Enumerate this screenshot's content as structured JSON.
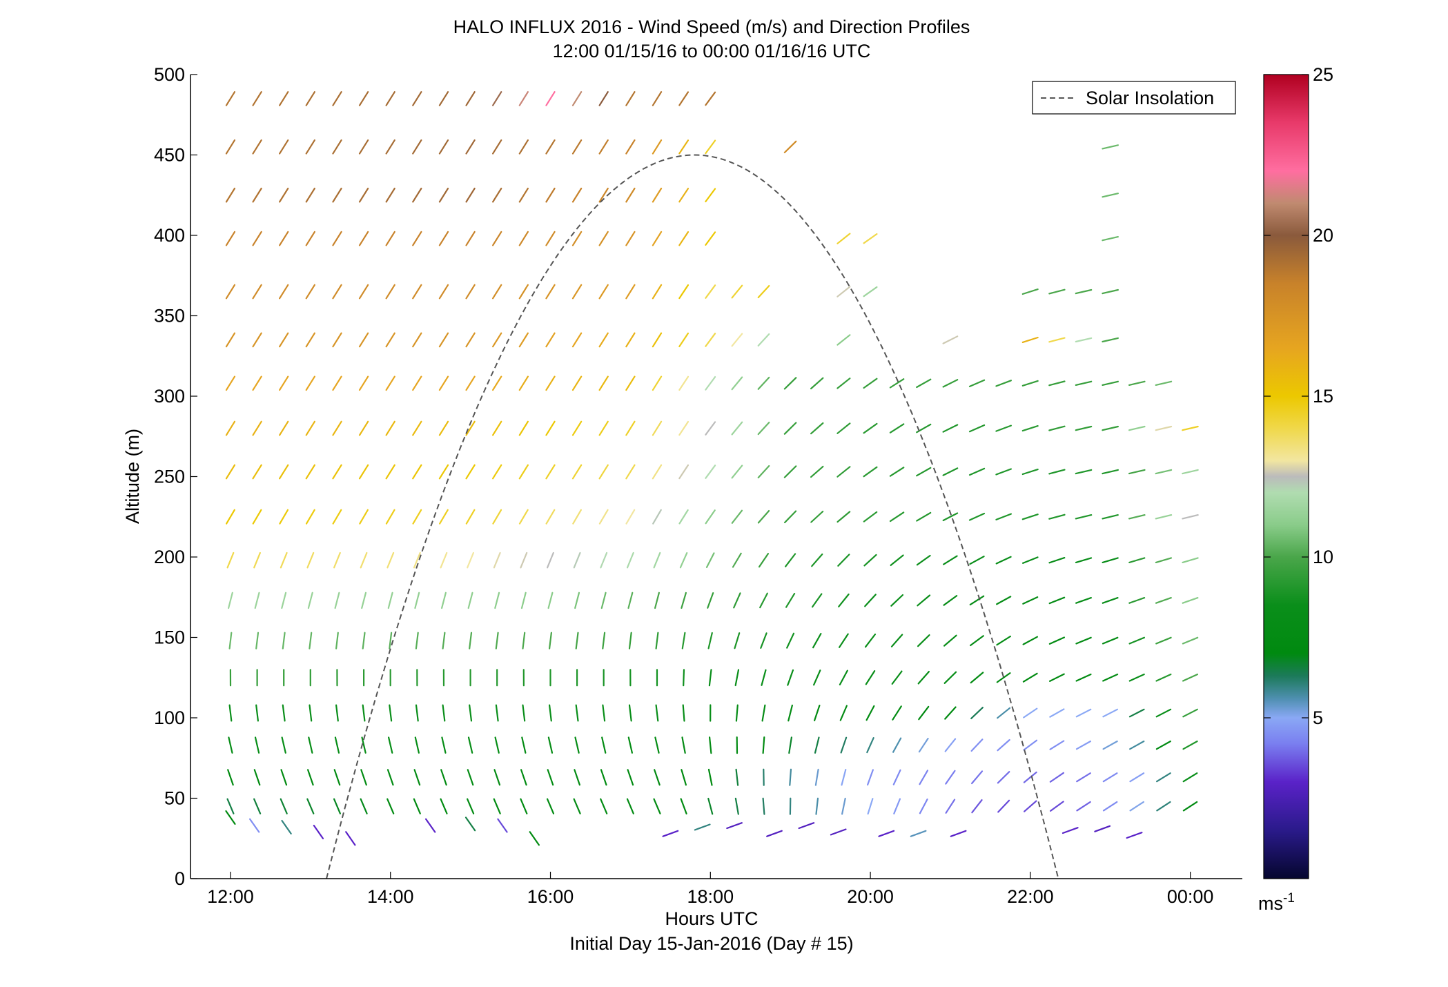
{
  "chart_data": {
    "type": "wind-barb-profile",
    "title": [
      "HALO INFLUX 2016 - Wind Speed (m/s) and Direction Profiles",
      "12:00 01/15/16 to 00:00 01/16/16  UTC"
    ],
    "xlabel": "Hours UTC",
    "xlabel_sub": "Initial Day 15-Jan-2016 (Day # 15)",
    "ylabel": "Altitude (m)",
    "x_unit": "hours after 12:00 UTC",
    "xlim": [
      -0.5,
      12.65
    ],
    "ylim": [
      0,
      500
    ],
    "x_ticks": [
      {
        "v": 0,
        "label": "12:00"
      },
      {
        "v": 2,
        "label": "14:00"
      },
      {
        "v": 4,
        "label": "16:00"
      },
      {
        "v": 6,
        "label": "18:00"
      },
      {
        "v": 8,
        "label": "20:00"
      },
      {
        "v": 10,
        "label": "22:00"
      },
      {
        "v": 12,
        "label": "00:00"
      }
    ],
    "y_ticks": [
      0,
      50,
      100,
      150,
      200,
      250,
      300,
      350,
      400,
      450,
      500
    ],
    "colorbar": {
      "label": "ms",
      "label_sup": "-1",
      "range": [
        0,
        25
      ],
      "ticks": [
        5,
        10,
        15,
        20,
        25
      ]
    },
    "legend": {
      "entries": [
        "Solar Insolation"
      ],
      "position": "top-right",
      "style": "dashed gray line"
    },
    "solar_insolation": {
      "start_hour": 1.2,
      "peak_hour": 5.8,
      "end_hour": 10.35,
      "peak_altitude": 450
    },
    "wind": {
      "time_step_hours": 0.3333,
      "altitude_levels": [
        45,
        63,
        83,
        103,
        125,
        148,
        173,
        198,
        225,
        253,
        280,
        308,
        335,
        365,
        398,
        425,
        455,
        485
      ],
      "upper_speed_by_hour": [
        [
          0,
          18
        ],
        [
          5,
          16
        ],
        [
          7.3,
          13
        ],
        [
          8.3,
          12
        ],
        [
          9,
          12.5
        ],
        [
          10.5,
          13
        ],
        [
          11.3,
          12
        ],
        [
          12,
          14
        ]
      ],
      "speed_by_level": [
        [
          [
            0,
            6.5
          ],
          [
            2,
            7
          ],
          [
            5,
            7.5
          ],
          [
            7,
            6
          ],
          [
            8.5,
            4.5
          ],
          [
            9.5,
            3.5
          ],
          [
            10.5,
            3.5
          ],
          [
            11.3,
            5
          ],
          [
            12,
            7
          ]
        ],
        [
          [
            0,
            7
          ],
          [
            3,
            7.5
          ],
          [
            6,
            7
          ],
          [
            8,
            4.5
          ],
          [
            9.5,
            4
          ],
          [
            10.5,
            3.8
          ],
          [
            11.5,
            5
          ],
          [
            12,
            8
          ]
        ],
        [
          [
            0,
            8
          ],
          [
            3,
            8
          ],
          [
            6,
            7.5
          ],
          [
            8,
            6
          ],
          [
            9.3,
            4.5
          ],
          [
            10.5,
            4.5
          ],
          [
            11.5,
            6
          ],
          [
            12,
            9
          ]
        ],
        [
          [
            0,
            8.5
          ],
          [
            4,
            8.5
          ],
          [
            6,
            8
          ],
          [
            9,
            7
          ],
          [
            10,
            5
          ],
          [
            11,
            5
          ],
          [
            12,
            9.5
          ]
        ],
        [
          [
            0,
            9.5
          ],
          [
            4,
            9
          ],
          [
            6,
            8.5
          ],
          [
            9,
            8
          ],
          [
            10,
            7
          ],
          [
            11,
            7.5
          ],
          [
            12,
            10
          ]
        ],
        [
          [
            0,
            10.5
          ],
          [
            4,
            10
          ],
          [
            6,
            9
          ],
          [
            9,
            8
          ],
          [
            10,
            7.5
          ],
          [
            11,
            8
          ],
          [
            12,
            10.5
          ]
        ],
        [
          [
            0,
            11.5
          ],
          [
            4,
            11
          ],
          [
            6,
            9.5
          ],
          [
            8,
            8.5
          ],
          [
            10,
            8
          ],
          [
            11,
            8.5
          ],
          [
            12,
            11
          ]
        ],
        [
          [
            0,
            14
          ],
          [
            2,
            13.5
          ],
          [
            4,
            12.5
          ],
          [
            5.5,
            11.5
          ],
          [
            7,
            9
          ],
          [
            9,
            8.5
          ],
          [
            11,
            8.5
          ],
          [
            12,
            11
          ]
        ],
        [
          [
            0,
            15
          ],
          [
            3,
            14.5
          ],
          [
            5,
            13
          ],
          [
            6,
            11
          ],
          [
            7,
            9.5
          ],
          [
            9,
            9
          ],
          [
            11,
            9
          ],
          [
            12,
            12.5
          ]
        ],
        [
          [
            0,
            15.5
          ],
          [
            3,
            15
          ],
          [
            5,
            14
          ],
          [
            6,
            12
          ],
          [
            7,
            9.5
          ],
          [
            9,
            9
          ],
          [
            11,
            9
          ],
          [
            12,
            11.5
          ]
        ],
        [
          [
            0,
            16
          ],
          [
            3,
            15.5
          ],
          [
            5,
            14.5
          ],
          [
            6,
            12.5
          ],
          [
            7,
            9.5
          ],
          [
            9,
            9
          ],
          [
            11,
            9.5
          ],
          [
            12,
            14.5
          ]
        ],
        [
          [
            0,
            16.5
          ],
          [
            3,
            16.5
          ],
          [
            5,
            15.5
          ],
          [
            6,
            12
          ],
          [
            7,
            9.5
          ],
          [
            9,
            9.5
          ],
          [
            11,
            9.5
          ],
          [
            12,
            11
          ]
        ],
        [
          [
            0,
            17.5
          ],
          [
            3,
            17.5
          ],
          [
            5,
            16
          ],
          [
            6,
            14
          ],
          [
            7,
            11
          ],
          [
            8.5,
            11
          ],
          [
            10,
            16
          ],
          [
            11,
            10
          ]
        ],
        [
          [
            0,
            18
          ],
          [
            3,
            18
          ],
          [
            5,
            17
          ],
          [
            6,
            14
          ],
          [
            7,
            15
          ],
          [
            8,
            11.5
          ],
          [
            10,
            10
          ],
          [
            11,
            10
          ]
        ],
        [
          [
            0,
            18.5
          ],
          [
            3,
            18.5
          ],
          [
            5,
            17.5
          ],
          [
            6,
            15
          ],
          [
            7.5,
            14.5
          ],
          [
            8,
            14
          ],
          [
            11,
            10.5
          ]
        ],
        [
          [
            0,
            19
          ],
          [
            3,
            19.5
          ],
          [
            5,
            18
          ],
          [
            6,
            15
          ],
          [
            11,
            10.5
          ]
        ],
        [
          [
            0,
            19
          ],
          [
            3,
            19.5
          ],
          [
            5,
            18.5
          ],
          [
            6,
            14.5
          ],
          [
            7,
            18
          ],
          [
            11,
            10.5
          ]
        ],
        [
          [
            0,
            19
          ],
          [
            3,
            19.5
          ],
          [
            4,
            22
          ],
          [
            5,
            19
          ],
          [
            6,
            19
          ]
        ]
      ],
      "presence": [
        [
          0,
          12
        ],
        [
          0,
          12
        ],
        [
          0,
          12
        ],
        [
          0,
          12
        ],
        [
          0,
          12
        ],
        [
          0,
          12
        ],
        [
          0,
          12
        ],
        [
          0,
          12
        ],
        [
          0,
          12
        ],
        [
          0,
          12
        ],
        [
          0,
          12
        ],
        [
          0,
          11.9
        ],
        [
          0,
          6.7,
          7.65,
          7.85,
          8.2,
          8.3,
          9.0,
          9.0,
          9.9,
          11.0
        ],
        [
          0,
          6.7,
          7.65,
          8.2,
          9.9,
          11.0
        ],
        [
          0,
          6.0,
          7.65,
          8.0,
          10.9,
          11.0
        ],
        [
          0,
          6.0,
          10.9,
          11.0
        ],
        [
          0,
          6.0,
          7.0,
          7.0,
          10.9,
          11.0
        ],
        [
          0,
          6.0
        ]
      ],
      "surface_gust_note": "scattered low-level barbs near 25-35 m"
    }
  }
}
